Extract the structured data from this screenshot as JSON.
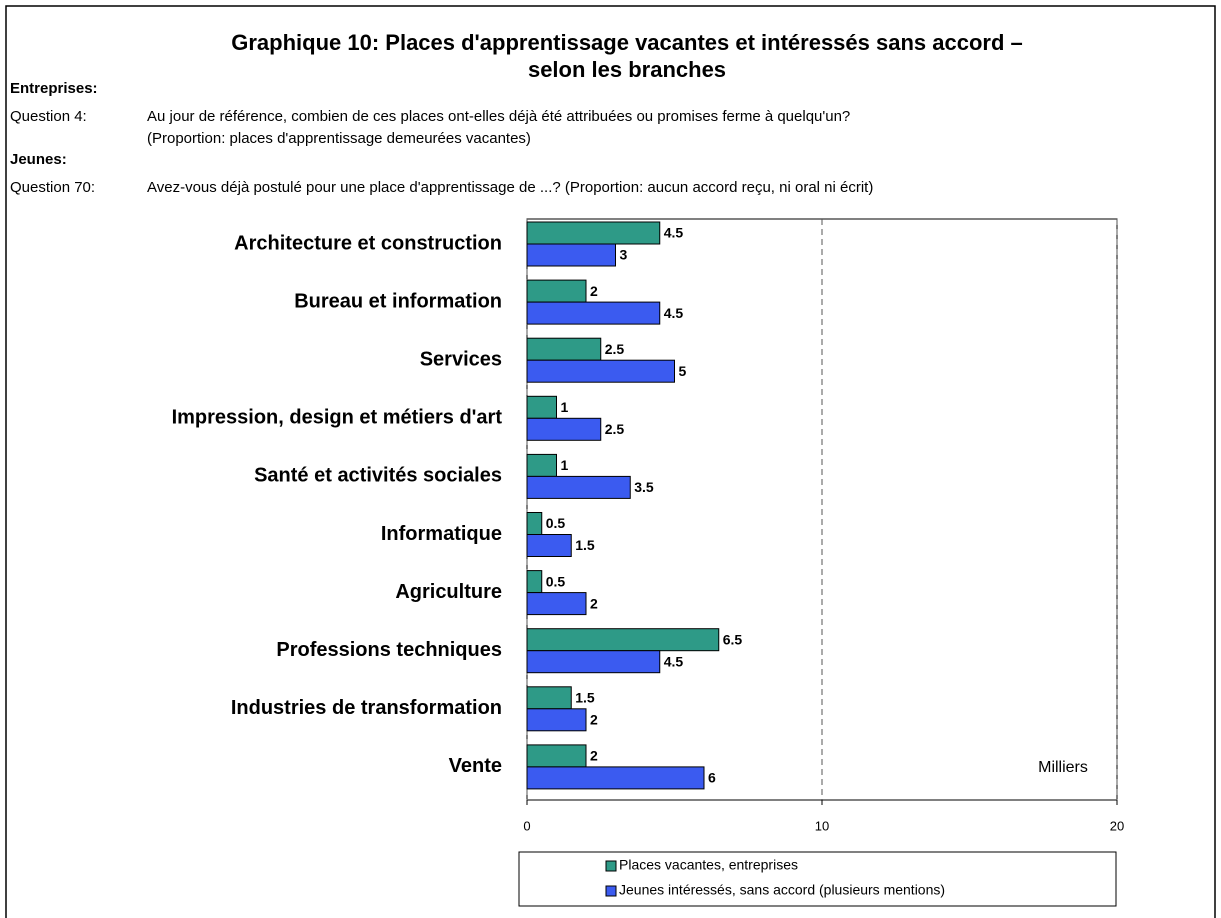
{
  "chart_data": {
    "type": "barh",
    "title": [
      "Graphique 10: Places d'apprentissage vacantes et intéressés sans accord –",
      "selon les branches"
    ],
    "notes": [
      {
        "heading": "Entreprises:",
        "label": "Question 4:",
        "lines": [
          "Au jour de référence, combien de ces places ont-elles déjà été attribuées ou promises ferme à quelqu'un?",
          "(Proportion: places d'apprentissage demeurées vacantes)"
        ]
      },
      {
        "heading": "Jeunes:",
        "label": "Question 70:",
        "lines": [
          "Avez-vous déjà postulé pour une place d'apprentissage de ...? (Proportion: aucun accord reçu, ni oral ni écrit)"
        ]
      }
    ],
    "annotation": "Milliers",
    "categories": [
      "Architecture et construction",
      "Bureau et information",
      "Services",
      "Impression, design et métiers d'art",
      "Santé et activités sociales",
      "Informatique",
      "Agriculture",
      "Professions techniques",
      "Industries de transformation",
      "Vente"
    ],
    "series": [
      {
        "name": "Places vacantes, entreprises",
        "color": "#2e9a87",
        "values": [
          4.5,
          2,
          2.5,
          1,
          1,
          0.5,
          0.5,
          6.5,
          1.5,
          2
        ]
      },
      {
        "name": "Jeunes intéressés, sans accord (plusieurs mentions)",
        "color": "#3b5bf0",
        "values": [
          3,
          4.5,
          5,
          2.5,
          3.5,
          1.5,
          2,
          4.5,
          2,
          6
        ]
      }
    ],
    "xlim": [
      0,
      20
    ],
    "xticks": [
      0,
      10,
      20
    ],
    "grid": true
  }
}
